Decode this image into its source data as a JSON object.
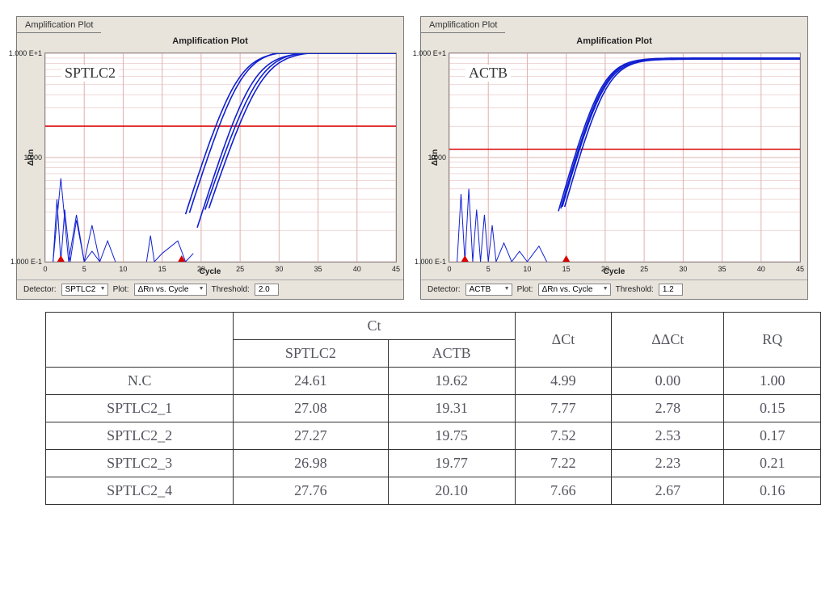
{
  "charts": [
    {
      "tab_label": "Amplification Plot",
      "inner_title": "Amplification Plot",
      "sample_label": "SPTLC2",
      "y_axis_label": "ΔRn",
      "x_axis_label": "Cycle",
      "detector_label": "Detector:",
      "detector_value": "SPTLC2",
      "plot_label": "Plot:",
      "plot_value": "ΔRn vs. Cycle",
      "threshold_label": "Threshold:",
      "threshold_value": "2.0",
      "x_range": [
        0,
        45
      ],
      "y_ticks": [
        {
          "label": "1.000 E+1",
          "log_pos": 1
        },
        {
          "label": "1.000",
          "log_pos": 0
        },
        {
          "label": "1.000 E-1",
          "log_pos": -1
        }
      ],
      "x_ticks": [
        0,
        5,
        10,
        15,
        20,
        25,
        30,
        35,
        40,
        45
      ],
      "threshold_log": 0.301,
      "threshold_color": "#d80000",
      "grid_color": "#e0b0b0",
      "curve_color": "#1020d0",
      "background_color": "#ffffff",
      "noise_paths": [
        [
          [
            1,
            -1.0
          ],
          [
            2,
            -0.2
          ],
          [
            3,
            -1.0
          ],
          [
            4,
            -0.55
          ],
          [
            5,
            -1.0
          ],
          [
            6,
            -0.9
          ],
          [
            7,
            -1.0
          ]
        ],
        [
          [
            1,
            -1.0
          ],
          [
            1.5,
            -0.4
          ],
          [
            2,
            -1.0
          ],
          [
            2.5,
            -0.5
          ],
          [
            3.2,
            -1.0
          ],
          [
            4,
            -0.6
          ],
          [
            5,
            -1.0
          ],
          [
            6,
            -0.65
          ],
          [
            7,
            -1.0
          ],
          [
            8,
            -0.8
          ],
          [
            9,
            -1.0
          ]
        ],
        [
          [
            13,
            -1.0
          ],
          [
            13.5,
            -0.75
          ],
          [
            14,
            -1.0
          ],
          [
            15,
            -0.92
          ],
          [
            17,
            -0.8
          ],
          [
            18,
            -1.0
          ],
          [
            19,
            -0.92
          ]
        ]
      ],
      "curves": [
        {
          "x0": 18,
          "xmid": 24.5,
          "k": 0.55,
          "ymax": 1.05
        },
        {
          "x0": 18.5,
          "xmid": 25.0,
          "k": 0.55,
          "ymax": 1.08
        },
        {
          "x0": 19.5,
          "xmid": 26.5,
          "k": 0.55,
          "ymax": 1.02
        },
        {
          "x0": 20.5,
          "xmid": 27.2,
          "k": 0.52,
          "ymax": 1.06
        },
        {
          "x0": 21,
          "xmid": 27.6,
          "k": 0.52,
          "ymax": 1.04
        }
      ],
      "red_arrows_x": [
        2,
        17.5
      ]
    },
    {
      "tab_label": "Amplification Plot",
      "inner_title": "Amplification Plot",
      "sample_label": "ACTB",
      "y_axis_label": "ΔRn",
      "x_axis_label": "Cycle",
      "detector_label": "Detector:",
      "detector_value": "ACTB",
      "plot_label": "Plot:",
      "plot_value": "ΔRn vs. Cycle",
      "threshold_label": "Threshold:",
      "threshold_value": "1.2",
      "x_range": [
        0,
        45
      ],
      "y_ticks": [
        {
          "label": "1.000 E+1",
          "log_pos": 1
        },
        {
          "label": "1.000",
          "log_pos": 0
        },
        {
          "label": "1.000 E-1",
          "log_pos": -1
        }
      ],
      "x_ticks": [
        0,
        5,
        10,
        15,
        20,
        25,
        30,
        35,
        40,
        45
      ],
      "threshold_log": 0.0792,
      "threshold_color": "#d80000",
      "grid_color": "#e0b0b0",
      "curve_color": "#1020d0",
      "background_color": "#ffffff",
      "noise_paths": [
        [
          [
            1,
            -1.0
          ],
          [
            1.5,
            -0.35
          ],
          [
            2,
            -1.0
          ],
          [
            2.5,
            -0.3
          ],
          [
            3,
            -1.0
          ],
          [
            3.5,
            -0.5
          ],
          [
            4,
            -1.0
          ],
          [
            4.5,
            -0.55
          ],
          [
            5,
            -1.0
          ],
          [
            5.5,
            -0.65
          ],
          [
            6,
            -1.0
          ],
          [
            7,
            -0.82
          ],
          [
            8,
            -1.0
          ],
          [
            9,
            -0.9
          ],
          [
            10,
            -1.0
          ],
          [
            11.5,
            -0.85
          ],
          [
            12.5,
            -1.0
          ]
        ]
      ],
      "curves": [
        {
          "x0": 14,
          "xmid": 19.4,
          "k": 0.62,
          "ymax": 0.9
        },
        {
          "x0": 14.3,
          "xmid": 19.6,
          "k": 0.62,
          "ymax": 0.9
        },
        {
          "x0": 14.5,
          "xmid": 19.7,
          "k": 0.62,
          "ymax": 0.88
        },
        {
          "x0": 14.8,
          "xmid": 20.0,
          "k": 0.62,
          "ymax": 0.88
        }
      ],
      "red_arrows_x": [
        2,
        15
      ]
    }
  ],
  "table": {
    "header_ct": "Ct",
    "header_sptlc2": "SPTLC2",
    "header_actb": "ACTB",
    "header_dct": "ΔCt",
    "header_ddct": "ΔΔCt",
    "header_rq": "RQ",
    "rows": [
      {
        "name": "N.C",
        "ct_sptlc2": "24.61",
        "ct_actb": "19.62",
        "dct": "4.99",
        "ddct": "0.00",
        "rq": "1.00"
      },
      {
        "name": "SPTLC2_1",
        "ct_sptlc2": "27.08",
        "ct_actb": "19.31",
        "dct": "7.77",
        "ddct": "2.78",
        "rq": "0.15"
      },
      {
        "name": "SPTLC2_2",
        "ct_sptlc2": "27.27",
        "ct_actb": "19.75",
        "dct": "7.52",
        "ddct": "2.53",
        "rq": "0.17"
      },
      {
        "name": "SPTLC2_3",
        "ct_sptlc2": "26.98",
        "ct_actb": "19.77",
        "dct": "7.22",
        "ddct": "2.23",
        "rq": "0.21"
      },
      {
        "name": "SPTLC2_4",
        "ct_sptlc2": "27.76",
        "ct_actb": "20.10",
        "dct": "7.66",
        "ddct": "2.67",
        "rq": "0.16"
      }
    ]
  }
}
